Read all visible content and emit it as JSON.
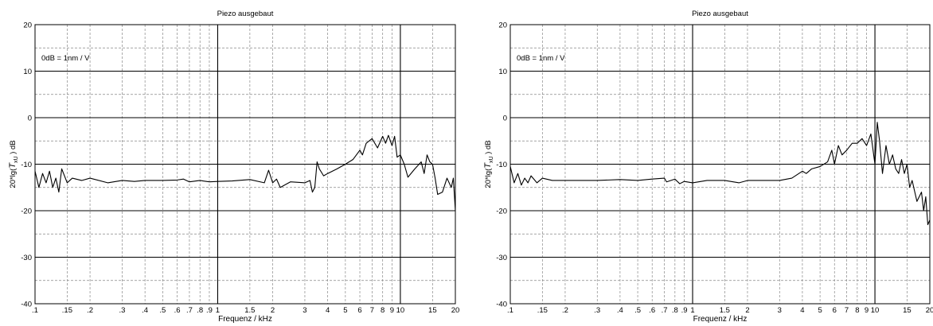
{
  "chart_data": [
    {
      "type": "line",
      "title": "Piezo  ausgebaut",
      "xlabel": "Frequenz / kHz",
      "ylabel": "20*lg(T xU ) dB",
      "ylabel_parts": {
        "pre": "20*lg(",
        "sym": "T",
        "sub": "xU",
        "post": " ) dB"
      },
      "annotation": "0dB  =  1nm / V",
      "xscale": "log",
      "xlim": [
        0.1,
        20
      ],
      "ylim": [
        -40,
        20
      ],
      "grid": true,
      "xticks": [
        0.1,
        0.15,
        0.2,
        0.3,
        0.4,
        0.5,
        0.6,
        0.7,
        0.8,
        0.9,
        1,
        1.5,
        2,
        3,
        4,
        5,
        6,
        7,
        8,
        9,
        10,
        15,
        20
      ],
      "xticklabels": [
        ".1",
        ".15",
        ".2",
        ".3",
        ".4",
        ".5",
        ".6",
        ".7",
        ".8",
        ".9",
        "1",
        "1.5",
        "2",
        "3",
        "4",
        "5",
        "6",
        "7",
        "8",
        "9",
        "10",
        "15",
        "20"
      ],
      "yticks": [
        -40,
        -30,
        -20,
        -10,
        0,
        10,
        20
      ],
      "yticklabels": [
        "-40",
        "-30",
        "-20",
        "-10",
        "0",
        "10",
        "20"
      ],
      "series": [
        {
          "x": [
            0.1,
            0.105,
            0.11,
            0.115,
            0.12,
            0.125,
            0.13,
            0.135,
            0.14,
            0.15,
            0.16,
            0.18,
            0.2,
            0.25,
            0.3,
            0.35,
            0.4,
            0.5,
            0.6,
            0.65,
            0.7,
            0.8,
            0.9,
            1.0,
            1.2,
            1.5,
            1.8,
            1.9,
            2.0,
            2.1,
            2.2,
            2.5,
            3.0,
            3.2,
            3.3,
            3.4,
            3.5,
            3.6,
            3.8,
            4.0,
            4.5,
            5.0,
            5.5,
            6.0,
            6.2,
            6.5,
            7.0,
            7.5,
            8.0,
            8.3,
            8.6,
            9.0,
            9.3,
            9.6,
            10.0,
            10.5,
            11.0,
            12.0,
            13.0,
            13.5,
            14.0,
            14.5,
            15.0,
            15.5,
            16.0,
            17.0,
            18.0,
            19.0,
            19.5,
            20.0
          ],
          "y": [
            -11.5,
            -15,
            -12,
            -14,
            -11.5,
            -15,
            -13,
            -16,
            -11,
            -14,
            -13,
            -13.5,
            -13,
            -14,
            -13.5,
            -13.7,
            -13.5,
            -13.5,
            -13.4,
            -13.2,
            -13.8,
            -13.5,
            -13.8,
            -13.7,
            -13.6,
            -13.3,
            -14,
            -11.3,
            -14,
            -13.2,
            -15,
            -13.8,
            -14,
            -13.5,
            -16,
            -15,
            -9.5,
            -11,
            -12.5,
            -12,
            -11,
            -10,
            -9,
            -7,
            -8,
            -5.5,
            -4.5,
            -6.5,
            -4,
            -5.5,
            -3.8,
            -6,
            -4,
            -8.5,
            -8,
            -10,
            -12.8,
            -11,
            -9.5,
            -12,
            -8,
            -9.5,
            -10,
            -13,
            -16.5,
            -16,
            -13,
            -15,
            -13,
            -20
          ]
        }
      ]
    },
    {
      "type": "line",
      "title": "Piezo  ausgebaut",
      "xlabel": "Frequenz / kHz",
      "ylabel": "20*lg(T xU ) dB",
      "ylabel_parts": {
        "pre": "20*lg(",
        "sym": "T",
        "sub": "xU",
        "post": " ) dB"
      },
      "annotation": "0dB  =  1nm / V",
      "xscale": "log",
      "xlim": [
        0.1,
        20
      ],
      "ylim": [
        -40,
        20
      ],
      "grid": true,
      "xticks": [
        0.1,
        0.15,
        0.2,
        0.3,
        0.4,
        0.5,
        0.6,
        0.7,
        0.8,
        0.9,
        1,
        1.5,
        2,
        3,
        4,
        5,
        6,
        7,
        8,
        9,
        10,
        15,
        20
      ],
      "xticklabels": [
        ".1",
        ".15",
        ".2",
        ".3",
        ".4",
        ".5",
        ".6",
        ".7",
        ".8",
        ".9",
        "1",
        "1.5",
        "2",
        "3",
        "4",
        "5",
        "6",
        "7",
        "8",
        "9",
        "10",
        "15",
        "20"
      ],
      "yticks": [
        -40,
        -30,
        -20,
        -10,
        0,
        10,
        20
      ],
      "yticklabels": [
        "-40",
        "-30",
        "-20",
        "-10",
        "0",
        "10",
        "20"
      ],
      "series": [
        {
          "x": [
            0.1,
            0.105,
            0.11,
            0.115,
            0.12,
            0.125,
            0.13,
            0.14,
            0.15,
            0.17,
            0.2,
            0.25,
            0.3,
            0.4,
            0.5,
            0.6,
            0.7,
            0.72,
            0.8,
            0.85,
            0.9,
            1.0,
            1.2,
            1.5,
            1.8,
            2.0,
            2.5,
            3.0,
            3.5,
            4.0,
            4.2,
            4.5,
            5.0,
            5.5,
            5.8,
            6.0,
            6.3,
            6.6,
            7.0,
            7.5,
            8.0,
            8.5,
            9.0,
            9.5,
            10.0,
            10.3,
            10.6,
            11.0,
            11.5,
            12.0,
            12.5,
            13.0,
            13.5,
            14.0,
            14.5,
            15.0,
            15.5,
            16.0,
            17.0,
            18.0,
            18.5,
            19.0,
            19.5,
            20.0
          ],
          "y": [
            -10.5,
            -14,
            -12,
            -14.5,
            -13,
            -14,
            -12.5,
            -14,
            -13,
            -13.5,
            -13.5,
            -13.5,
            -13.5,
            -13.3,
            -13.5,
            -13.2,
            -13,
            -13.8,
            -13.2,
            -14.2,
            -13.7,
            -14,
            -13.5,
            -13.5,
            -14,
            -13.5,
            -13.5,
            -13.5,
            -13,
            -11.5,
            -12,
            -11,
            -10.5,
            -9.5,
            -7,
            -10,
            -6,
            -8,
            -7,
            -5.5,
            -5.5,
            -4.5,
            -6,
            -3.5,
            -10,
            -1,
            -5,
            -12,
            -6,
            -10,
            -8,
            -11,
            -12,
            -9,
            -12,
            -10,
            -15,
            -13.5,
            -18,
            -16,
            -20,
            -17,
            -23,
            -22
          ]
        }
      ]
    }
  ]
}
